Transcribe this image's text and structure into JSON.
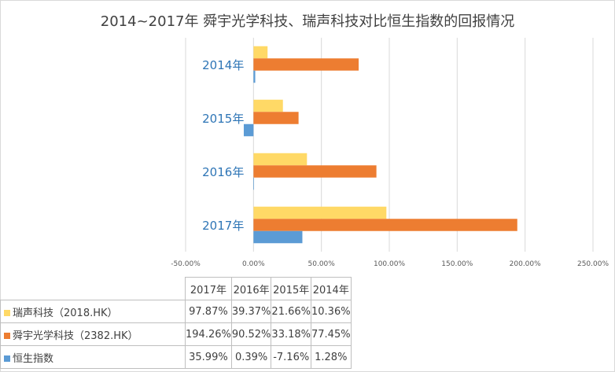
{
  "chart_data": {
    "type": "bar",
    "orientation": "horizontal",
    "title": "2014~2017年 舜宇光学科技、瑞声科技对比恒生指数的回报情况",
    "categories": [
      "2017年",
      "2016年",
      "2015年",
      "2014年"
    ],
    "series": [
      {
        "name": "瑞声科技（2018.HK）",
        "color": "#ffd966",
        "values": [
          97.87,
          39.37,
          21.66,
          10.36
        ],
        "labels": [
          "97.87%",
          "39.37%",
          "21.66%",
          "10.36%"
        ]
      },
      {
        "name": "舜宇光学科技（2382.HK）",
        "color": "#ed7d31",
        "values": [
          194.26,
          90.52,
          33.18,
          77.45
        ],
        "labels": [
          "194.26%",
          "90.52%",
          "33.18%",
          "77.45%"
        ]
      },
      {
        "name": "恒生指数",
        "color": "#5b9bd5",
        "values": [
          35.99,
          0.39,
          -7.16,
          1.28
        ],
        "labels": [
          "35.99%",
          "0.39%",
          "-7.16%",
          "1.28%"
        ]
      }
    ],
    "xlim": [
      -50,
      250
    ],
    "x_ticks": [
      -50,
      0,
      50,
      100,
      150,
      200,
      250
    ],
    "x_tick_labels": [
      "-50.00%",
      "0.00%",
      "50.00%",
      "100.00%",
      "150.00%",
      "200.00%",
      "250.00%"
    ],
    "grid": true,
    "legend": "data-table"
  }
}
